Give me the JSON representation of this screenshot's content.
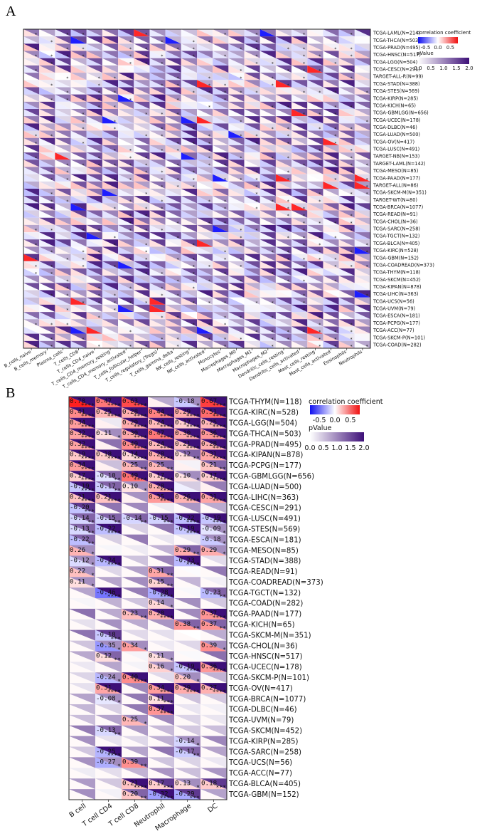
{
  "panel_a_label": "A",
  "panel_b_label": "B",
  "chart_data": [
    {
      "type": "heatmap",
      "title": "",
      "rows": [
        "TCGA-LAML(N=214)",
        "TCGA-THCA(N=503)",
        "TCGA-PRAD(N=495)",
        "TCGA-HNSC(N=517)",
        "TCGA-LGG(N=504)",
        "TCGA-CESC(N=291)",
        "TARGET-ALL-R(N=99)",
        "TCGA-STAD(N=388)",
        "TCGA-STES(N=569)",
        "TCGA-KIRP(N=285)",
        "TCGA-KICH(N=65)",
        "TCGA-GBMLGG(N=656)",
        "TCGA-UCEC(N=178)",
        "TCGA-DLBC(N=46)",
        "TCGA-LUAD(N=500)",
        "TCGA-OV(N=417)",
        "TCGA-LUSC(N=491)",
        "TARGET-NB(N=153)",
        "TARGET-LAML(N=142)",
        "TCGA-MESO(N=85)",
        "TCGA-PAAD(N=177)",
        "TARGET-ALL(N=86)",
        "TCGA-SKCM-M(N=351)",
        "TARGET-WT(N=80)",
        "TCGA-BRCA(N=1077)",
        "TCGA-READ(N=91)",
        "TCGA-CHOL(N=36)",
        "TCGA-SARC(N=258)",
        "TCGA-TGCT(N=132)",
        "TCGA-BLCA(N=405)",
        "TCGA-KIRC(N=528)",
        "TCGA-GBM(N=152)",
        "TCGA-COADREAD(N=373)",
        "TCGA-THYM(N=118)",
        "TCGA-SKCM(N=452)",
        "TCGA-KIPAN(N=878)",
        "TCGA-LIHC(N=363)",
        "TCGA-UCS(N=56)",
        "TCGA-UVM(N=79)",
        "TCGA-ESCA(N=181)",
        "TCGA-PCPG(N=177)",
        "TCGA-ACC(N=77)",
        "TCGA-SKCM-P(N=101)",
        "TCGA-COAD(N=282)"
      ],
      "columns": [
        "B_cells_naive",
        "B_cells_memory",
        "Plasma_cells",
        "T_cells_CD8",
        "T_cells_CD4_naive",
        "T_cells_CD4_memory_resting",
        "T_cells_CD4_memory_activated",
        "T_cells_follicular_helper",
        "T_cells_regulatory_(Tregs)",
        "T_cells_gamma_delta",
        "NK_cells_resting",
        "NK_cells_activated",
        "Monocytes",
        "Macrophages_M0",
        "Macrophages_M1",
        "Macrophages_M2",
        "Dendritic_cells_resting",
        "Dendritic_cells_activated",
        "Mast_cells_resting",
        "Mast_cells_activated",
        "Eosinophils",
        "Neutrophils"
      ],
      "cell_marker": "*",
      "note": "Each cell split diagonally: lower-left triangle = correlation coefficient (blue-white-red), upper-right = pValue (white-purple); '*' marks significant cells. Values approximated from color.",
      "legend": {
        "corr_title": "correlation coefficient",
        "corr_ticks": [
          "-0.5",
          "0.0",
          "0.5"
        ],
        "p_title": "pValue",
        "p_ticks": [
          "0.0",
          "0.5",
          "1.0",
          "1.5",
          "2.0"
        ]
      }
    },
    {
      "type": "heatmap",
      "title": "",
      "rows": [
        "TCGA-THYM(N=118)",
        "TCGA-KIRC(N=528)",
        "TCGA-LGG(N=504)",
        "TCGA-THCA(N=503)",
        "TCGA-PRAD(N=495)",
        "TCGA-KIPAN(N=878)",
        "TCGA-PCPG(N=177)",
        "TCGA-GBMLGG(N=656)",
        "TCGA-LUAD(N=500)",
        "TCGA-LIHC(N=363)",
        "TCGA-CESC(N=291)",
        "TCGA-LUSC(N=491)",
        "TCGA-STES(N=569)",
        "TCGA-ESCA(N=181)",
        "TCGA-MESO(N=85)",
        "TCGA-STAD(N=388)",
        "TCGA-READ(N=91)",
        "TCGA-COADREAD(N=373)",
        "TCGA-TGCT(N=132)",
        "TCGA-COAD(N=282)",
        "TCGA-PAAD(N=177)",
        "TCGA-KICH(N=65)",
        "TCGA-SKCM-M(N=351)",
        "TCGA-CHOL(N=36)",
        "TCGA-HNSC(N=517)",
        "TCGA-UCEC(N=178)",
        "TCGA-SKCM-P(N=101)",
        "TCGA-OV(N=417)",
        "TCGA-BRCA(N=1077)",
        "TCGA-DLBC(N=46)",
        "TCGA-UVM(N=79)",
        "TCGA-SKCM(N=452)",
        "TCGA-KIRP(N=285)",
        "TCGA-SARC(N=258)",
        "TCGA-UCS(N=56)",
        "TCGA-ACC(N=77)",
        "TCGA-BLCA(N=405)",
        "TCGA-GBM(N=152)"
      ],
      "columns": [
        "B cell",
        "T cell CD4",
        "T cell CD8",
        "Neutrophil",
        "Macrophage",
        "DC"
      ],
      "values": [
        [
          0.78,
          0.47,
          0.63,
          0.05,
          -0.18,
          0.67
        ],
        [
          0.41,
          0.25,
          0.28,
          0.44,
          0.29,
          0.51
        ],
        [
          0.34,
          0.05,
          0.29,
          0.24,
          0.17,
          0.25
        ],
        [
          0.32,
          0.11,
          0.3,
          0.47,
          0.3,
          0.36
        ],
        [
          0.32,
          0.05,
          0.4,
          0.24,
          0.21,
          0.28
        ],
        [
          0.19,
          0.18,
          0.14,
          0.28,
          0.12,
          0.31
        ],
        [
          0.34,
          0.05,
          0.25,
          0.25,
          0.05,
          0.21
        ],
        [
          0.17,
          -0.1,
          0.49,
          0.17,
          0.1,
          0.17
        ],
        [
          -0.19,
          -0.17,
          0.1,
          0.28,
          -0.05,
          0.05
        ],
        [
          0.21,
          0.21,
          0.05,
          0.35,
          0.26,
          0.31
        ],
        [
          -0.2,
          0.02,
          0.02,
          0.02,
          0.02,
          0.02
        ],
        [
          -0.14,
          -0.15,
          -0.14,
          -0.15,
          -0.22,
          -0.19
        ],
        [
          -0.13,
          -0.22,
          0.02,
          0.02,
          -0.19,
          -0.09
        ],
        [
          -0.22,
          0.02,
          0.02,
          0.02,
          0.02,
          -0.18
        ],
        [
          0.26,
          0.02,
          0.02,
          0.02,
          0.29,
          0.29
        ],
        [
          -0.12,
          -0.24,
          0.02,
          0.02,
          -0.23,
          0.02
        ],
        [
          0.22,
          0.02,
          0.02,
          0.31,
          0.02,
          0.02
        ],
        [
          0.11,
          0.02,
          0.02,
          0.15,
          0.02,
          0.02
        ],
        [
          0.02,
          -0.46,
          0.02,
          -0.28,
          0.02,
          -0.23
        ],
        [
          0.02,
          0.02,
          0.02,
          0.14,
          0.02,
          0.02
        ],
        [
          0.02,
          0.02,
          0.23,
          0.28,
          0.02,
          0.37
        ],
        [
          0.02,
          0.02,
          0.02,
          0.02,
          0.38,
          0.37
        ],
        [
          0.02,
          -0.18,
          0.02,
          0.02,
          0.02,
          0.02
        ],
        [
          0.02,
          -0.35,
          0.34,
          0.02,
          0.02,
          0.39
        ],
        [
          0.02,
          0.12,
          0.02,
          0.11,
          0.02,
          0.02
        ],
        [
          0.02,
          0.02,
          0.02,
          0.16,
          -0.19,
          0.36
        ],
        [
          0.02,
          -0.24,
          0.4,
          0.02,
          0.2,
          0.02
        ],
        [
          0.02,
          0.31,
          0.02,
          0.34,
          0.29,
          0.27
        ],
        [
          0.02,
          -0.08,
          0.02,
          0.11,
          0.02,
          0.02
        ],
        [
          0.02,
          0.02,
          0.02,
          0.37,
          0.02,
          0.02
        ],
        [
          0.02,
          0.02,
          0.25,
          0.02,
          0.02,
          0.02
        ],
        [
          0.02,
          -0.13,
          0.02,
          0.02,
          0.02,
          0.02
        ],
        [
          0.02,
          0.02,
          0.02,
          0.02,
          -0.14,
          0.02
        ],
        [
          0.02,
          -0.25,
          0.02,
          0.02,
          -0.17,
          0.02
        ],
        [
          0.02,
          -0.27,
          0.39,
          0.02,
          0.02,
          0.02
        ],
        [
          0.02,
          0.02,
          0.02,
          0.02,
          0.02,
          0.02
        ],
        [
          0.02,
          0.02,
          0.21,
          0.17,
          0.13,
          0.18
        ],
        [
          0.02,
          0.02,
          0.2,
          -0.32,
          -0.29,
          0.02
        ]
      ],
      "labels": [
        [
          "0.78",
          "0.47",
          "0.63",
          "",
          "-0.18",
          "0.67"
        ],
        [
          "0.41",
          "0.25",
          "0.28",
          "0.44",
          "0.29",
          "0.51"
        ],
        [
          "0.34",
          "",
          "0.29",
          "0.24",
          "0.17",
          "0.25"
        ],
        [
          "0.32",
          "0.11",
          "0.30",
          "0.47",
          "0.30",
          "0.36"
        ],
        [
          "0.32",
          "",
          "0.40",
          "0.24",
          "0.21",
          "0.28"
        ],
        [
          "0.19",
          "0.18",
          "0.14",
          "0.28",
          "0.12",
          "0.31"
        ],
        [
          "0.34",
          "",
          "0.25",
          "0.25",
          "",
          "0.21"
        ],
        [
          "0.17",
          "-0.10",
          "0.49",
          "0.17",
          "0.10",
          "0.17"
        ],
        [
          "-0.19",
          "-0.17",
          "0.10",
          "0.28",
          "",
          ""
        ],
        [
          "0.21",
          "0.21",
          "",
          "0.35",
          "0.26",
          "0.31"
        ],
        [
          "-0.20",
          "",
          "",
          "",
          "",
          ""
        ],
        [
          "-0.14",
          "-0.15",
          "-0.14",
          "-0.15",
          "-0.22",
          "-0.19"
        ],
        [
          "-0.13",
          "-0.22",
          "",
          "",
          "-0.19",
          "-0.09"
        ],
        [
          "-0.22",
          "",
          "",
          "",
          "",
          "-0.18"
        ],
        [
          "0.26",
          "",
          "",
          "",
          "0.29",
          "0.29"
        ],
        [
          "-0.12",
          "-0.24",
          "",
          "",
          "-0.23",
          ""
        ],
        [
          "0.22",
          "",
          "",
          "0.31",
          "",
          ""
        ],
        [
          "0.11",
          "",
          "",
          "0.15",
          "",
          ""
        ],
        [
          "",
          "-0.46",
          "",
          "-0.28",
          "",
          "-0.23"
        ],
        [
          "",
          "",
          "",
          "0.14",
          "",
          ""
        ],
        [
          "",
          "",
          "0.23",
          "0.28",
          "",
          "0.37"
        ],
        [
          "",
          "",
          "",
          "",
          "0.38",
          "0.37"
        ],
        [
          "",
          "-0.18",
          "",
          "",
          "",
          ""
        ],
        [
          "",
          "-0.35",
          "0.34",
          "",
          "",
          "0.39"
        ],
        [
          "",
          "0.12",
          "",
          "0.11",
          "",
          ""
        ],
        [
          "",
          "",
          "",
          "0.16",
          "-0.19",
          "0.36"
        ],
        [
          "",
          "-0.24",
          "0.40",
          "",
          "0.20",
          ""
        ],
        [
          "",
          "0.31",
          "",
          "0.34",
          "0.29",
          "0.27"
        ],
        [
          "",
          "-0.08",
          "",
          "0.11",
          "",
          ""
        ],
        [
          "",
          "",
          "",
          "0.37",
          "",
          ""
        ],
        [
          "",
          "",
          "0.25",
          "",
          "",
          ""
        ],
        [
          "",
          "-0.13",
          "",
          "",
          "",
          ""
        ],
        [
          "",
          "",
          "",
          "",
          "-0.14",
          ""
        ],
        [
          "",
          "-0.25",
          "",
          "",
          "-0.17",
          ""
        ],
        [
          "",
          "-0.27",
          "0.39",
          "",
          "",
          ""
        ],
        [
          "",
          "",
          "",
          "",
          "",
          ""
        ],
        [
          "",
          "",
          "0.21",
          "0.17",
          "0.13",
          "0.18"
        ],
        [
          "",
          "",
          "0.20",
          "-0.32",
          "-0.29",
          ""
        ]
      ],
      "stars": [
        [
          "****",
          "****",
          "****",
          "",
          "*",
          "****"
        ],
        [
          "****",
          "****",
          "****",
          "****",
          "****",
          "****"
        ],
        [
          "****",
          "",
          "****",
          "****",
          "****",
          "****"
        ],
        [
          "****",
          "*",
          "****",
          "****",
          "****",
          "****"
        ],
        [
          "****",
          "",
          "****",
          "****",
          "****",
          "****"
        ],
        [
          "****",
          "****",
          "****",
          "****",
          "**",
          "****"
        ],
        [
          "****",
          "",
          "**",
          "**",
          "",
          "**"
        ],
        [
          "****",
          "**",
          "****",
          "****",
          "*",
          "****"
        ],
        [
          "****",
          "**",
          "*",
          "****",
          "",
          ""
        ],
        [
          "****",
          "****",
          "",
          "****",
          "****",
          "****"
        ],
        [
          "***",
          "",
          "",
          "",
          "",
          ""
        ],
        [
          "**",
          "**",
          "**",
          "***",
          "****",
          "****"
        ],
        [
          "**",
          "****",
          "",
          "",
          "****",
          "*"
        ],
        [
          "**",
          "",
          "",
          "",
          "",
          "*"
        ],
        [
          "*",
          "",
          "",
          "",
          "**",
          "*"
        ],
        [
          "*",
          "****",
          "",
          "",
          "****",
          ""
        ],
        [
          "*",
          "",
          "",
          "**",
          "",
          ""
        ],
        [
          "*",
          "",
          "",
          "**",
          "",
          ""
        ],
        [
          "",
          "****",
          "",
          "****",
          "",
          "**"
        ],
        [
          "",
          "",
          "",
          "*",
          "",
          ""
        ],
        [
          "",
          "",
          "**",
          "****",
          "",
          "****"
        ],
        [
          "",
          "",
          "",
          "",
          "**",
          "**"
        ],
        [
          "",
          "***",
          "",
          "",
          "",
          ""
        ],
        [
          "",
          "*",
          "*",
          "",
          "",
          "*"
        ],
        [
          "",
          "**",
          "",
          "*",
          "",
          ""
        ],
        [
          "",
          "",
          "",
          "*",
          "****",
          "****"
        ],
        [
          "",
          "*",
          "****",
          "",
          "*",
          ""
        ],
        [
          "",
          "****",
          "",
          "****",
          "****",
          "****"
        ],
        [
          "",
          "*",
          "",
          "***",
          "",
          ""
        ],
        [
          "",
          "",
          "",
          "****",
          "",
          ""
        ],
        [
          "",
          "",
          "*",
          "",
          "",
          ""
        ],
        [
          "",
          "**",
          "",
          "",
          "",
          ""
        ],
        [
          "",
          "",
          "",
          "",
          "*",
          ""
        ],
        [
          "",
          "****",
          "",
          "",
          "**",
          ""
        ],
        [
          "",
          "*",
          "**",
          "",
          "",
          ""
        ],
        [
          "",
          "",
          "",
          "",
          "",
          ""
        ],
        [
          "",
          "",
          "****",
          "***",
          "*",
          "***"
        ],
        [
          "",
          "",
          "**",
          "****",
          "***",
          ""
        ]
      ],
      "legend": {
        "corr_title": "correlation coefficient",
        "corr_ticks": [
          "-0.5",
          "0.0",
          "0.5"
        ],
        "p_title": "pValue",
        "p_ticks": [
          "0.0",
          "0.5",
          "1.0",
          "1.5",
          "2.0"
        ]
      }
    }
  ]
}
